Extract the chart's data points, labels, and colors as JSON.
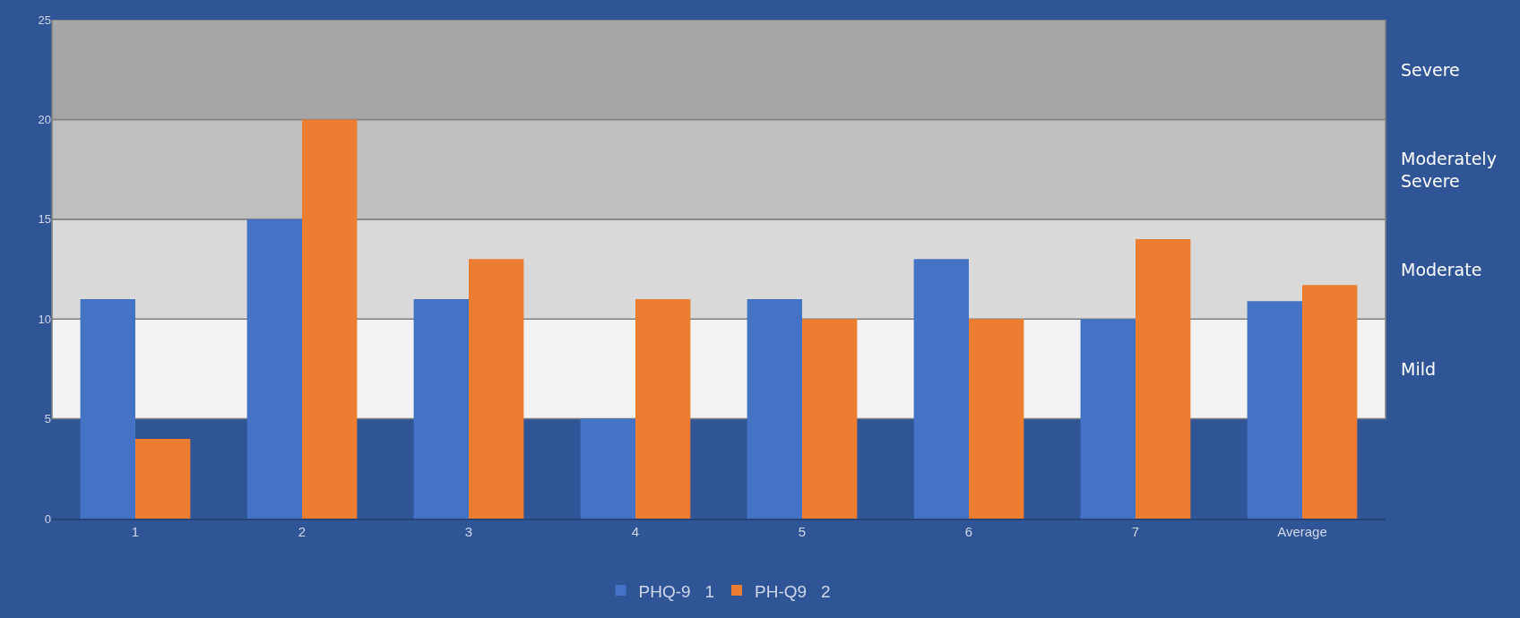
{
  "chart_data": {
    "type": "bar",
    "categories": [
      "1",
      "2",
      "3",
      "4",
      "5",
      "6",
      "7",
      "Average"
    ],
    "series": [
      {
        "name": "PHQ-9   1",
        "color": "#4472c4",
        "values": [
          11,
          15,
          11,
          5,
          11,
          13,
          10,
          10.9
        ]
      },
      {
        "name": "PH-Q9   2",
        "color": "#ed7d31",
        "values": [
          4,
          20,
          13,
          11,
          10,
          10,
          14,
          11.7
        ]
      }
    ],
    "ylim": [
      0,
      25
    ],
    "yticks": [
      0,
      5,
      10,
      15,
      20,
      25
    ],
    "grid": false,
    "legend": "bottom",
    "bands": [
      {
        "axis": "y",
        "from": 5,
        "to": 10,
        "label": "Mild",
        "color": "#f2f2f2"
      },
      {
        "axis": "y",
        "from": 10,
        "to": 15,
        "label": "Moderate",
        "color": "#d9d9d9"
      },
      {
        "axis": "y",
        "from": 15,
        "to": 20,
        "label": "Moderately Severe",
        "color": "#bfbfbf"
      },
      {
        "axis": "y",
        "from": 20,
        "to": 25,
        "label": "Severe",
        "color": "#a6a6a6"
      }
    ]
  }
}
